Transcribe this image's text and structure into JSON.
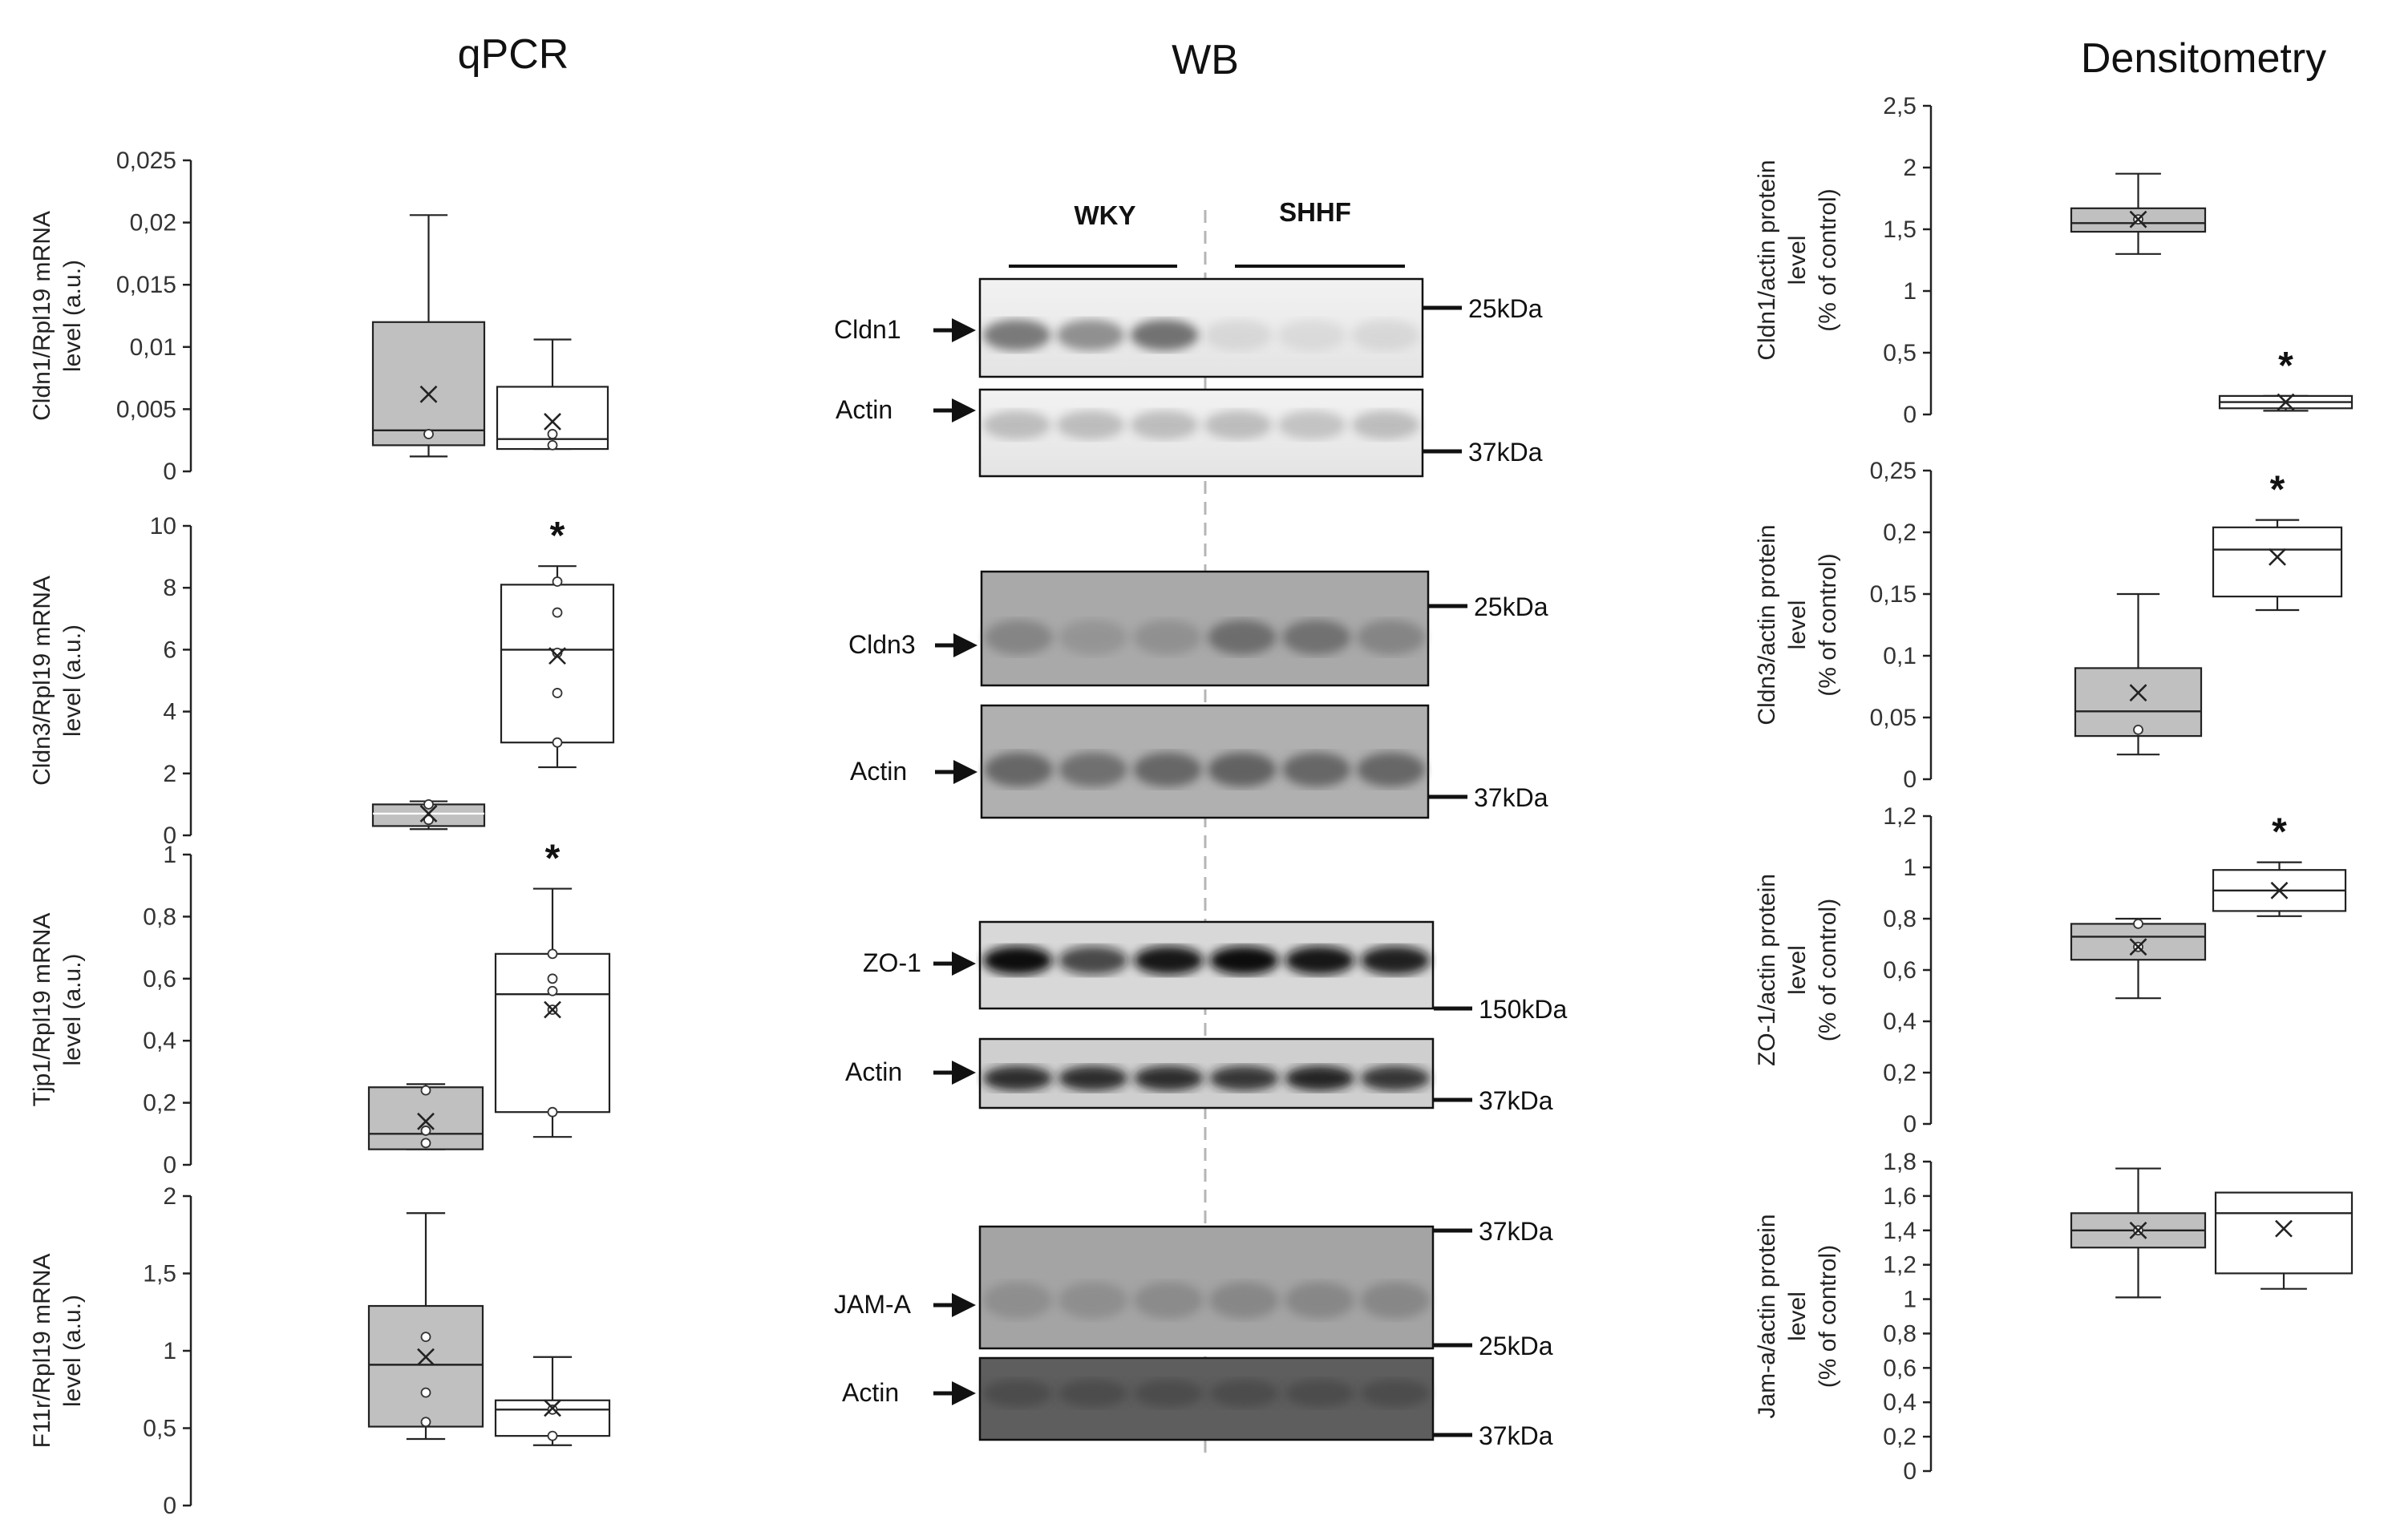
{
  "section_titles": {
    "qpcr": "qPCR",
    "wb": "WB",
    "densitometry": "Densitometry"
  },
  "wb": {
    "groups": [
      "WKY",
      "SHHF"
    ],
    "blots": [
      {
        "target": "Cldn1",
        "loading": "Actin",
        "markers": [
          "25kDa",
          "37kDa"
        ]
      },
      {
        "target": "Cldn3",
        "loading": "Actin",
        "markers": [
          "25kDa",
          "37kDa"
        ]
      },
      {
        "target": "ZO-1",
        "loading": "Actin",
        "markers": [
          "150kDa",
          "37kDa"
        ]
      },
      {
        "target": "JAM-A",
        "loading": "Actin",
        "markers": [
          "37kDa",
          "25kDa",
          "37kDa"
        ]
      }
    ]
  },
  "colors": {
    "wky_fill": "#c0c0c0",
    "shhf_fill": "#ffffff",
    "stroke": "#222222"
  },
  "chart_data": [
    {
      "type": "box",
      "id": "qpcr-cldn1",
      "ylabel": [
        "Cldn1/Rpl19  mRNA",
        "level (a.u.)"
      ],
      "ylim": [
        0,
        0.025
      ],
      "ticks": [
        "0",
        "0,005",
        "0,01",
        "0,015",
        "0,02",
        "0,025"
      ],
      "series": [
        {
          "min": 0.0012,
          "q1": 0.0021,
          "median": 0.0033,
          "q3": 0.012,
          "max": 0.0206,
          "mean": 0.0062,
          "points": [
            0.003
          ]
        },
        {
          "min": 0.0018,
          "q1": 0.0018,
          "median": 0.0026,
          "q3": 0.0068,
          "max": 0.0106,
          "mean": 0.004,
          "points": [
            0.0021,
            0.003
          ]
        }
      ],
      "significance": []
    },
    {
      "type": "box",
      "id": "qpcr-cldn3",
      "ylabel": [
        "Cldn3/Rpl19  mRNA",
        "level (a.u.)"
      ],
      "ylim": [
        0,
        10
      ],
      "ticks": [
        "0",
        "2",
        "4",
        "6",
        "8",
        "10"
      ],
      "series": [
        {
          "min": 0.2,
          "q1": 0.3,
          "median": 0.7,
          "q3": 1.0,
          "max": 1.1,
          "mean": 0.7,
          "points": [
            0.5,
            1.0
          ]
        },
        {
          "min": 2.2,
          "q1": 3.0,
          "median": 6.0,
          "q3": 8.1,
          "max": 8.7,
          "mean": 5.8,
          "points": [
            3.0,
            4.6,
            5.9,
            7.2,
            8.2
          ]
        }
      ],
      "significance": [
        "*"
      ]
    },
    {
      "type": "box",
      "id": "qpcr-tjp1",
      "ylabel": [
        "Tjp1/Rpl19  mRNA",
        "level (a.u.)"
      ],
      "ylim": [
        0,
        1
      ],
      "ticks": [
        "0",
        "0,2",
        "0,4",
        "0,6",
        "0,8",
        "1"
      ],
      "series": [
        {
          "min": 0.05,
          "q1": 0.05,
          "median": 0.1,
          "q3": 0.25,
          "max": 0.26,
          "mean": 0.14,
          "points": [
            0.07,
            0.11,
            0.24
          ]
        },
        {
          "min": 0.09,
          "q1": 0.17,
          "median": 0.55,
          "q3": 0.68,
          "max": 0.89,
          "mean": 0.5,
          "points": [
            0.17,
            0.5,
            0.56,
            0.6,
            0.68
          ]
        }
      ],
      "significance": [
        "*"
      ]
    },
    {
      "type": "box",
      "id": "qpcr-f11r",
      "ylabel": [
        "F11r/Rpl19  mRNA",
        "level (a.u.)"
      ],
      "ylim": [
        0,
        2
      ],
      "ticks": [
        "0",
        "0,5",
        "1",
        "1,5",
        "2"
      ],
      "series": [
        {
          "min": 0.43,
          "q1": 0.51,
          "median": 0.91,
          "q3": 1.29,
          "max": 1.89,
          "mean": 0.96,
          "points": [
            0.54,
            0.73,
            1.09
          ]
        },
        {
          "min": 0.39,
          "q1": 0.45,
          "median": 0.62,
          "q3": 0.68,
          "max": 0.96,
          "mean": 0.63,
          "points": [
            0.45,
            0.62
          ]
        }
      ],
      "significance": []
    },
    {
      "type": "box",
      "id": "dens-cldn1",
      "ylabel": [
        "Cldn1/actin protein",
        "level",
        "(% of control)"
      ],
      "ylim": [
        0,
        2.5
      ],
      "ticks": [
        "0",
        "0,5",
        "1",
        "1,5",
        "2",
        "2,5"
      ],
      "series": [
        {
          "min": 1.3,
          "q1": 1.48,
          "median": 1.55,
          "q3": 1.67,
          "max": 1.95,
          "mean": 1.58,
          "points": [
            1.58
          ]
        },
        {
          "min": 0.03,
          "q1": 0.05,
          "median": 0.1,
          "q3": 0.15,
          "max": 0.15,
          "mean": 0.1,
          "points": []
        }
      ],
      "significance": [
        "*"
      ]
    },
    {
      "type": "box",
      "id": "dens-cldn3",
      "ylabel": [
        "Cldn3/actin protein",
        "level",
        "(% of control)"
      ],
      "ylim": [
        0,
        0.25
      ],
      "ticks": [
        "0",
        "0,05",
        "0,1",
        "0,15",
        "0,2",
        "0,25"
      ],
      "series": [
        {
          "min": 0.02,
          "q1": 0.035,
          "median": 0.055,
          "q3": 0.09,
          "max": 0.15,
          "mean": 0.07,
          "points": [
            0.04
          ]
        },
        {
          "min": 0.137,
          "q1": 0.148,
          "median": 0.186,
          "q3": 0.204,
          "max": 0.21,
          "mean": 0.18,
          "points": []
        }
      ],
      "significance": [
        "*"
      ]
    },
    {
      "type": "box",
      "id": "dens-zo1",
      "ylabel": [
        "ZO-1/actin  protein",
        "level",
        "(% of control)"
      ],
      "ylim": [
        0,
        1.2
      ],
      "ticks": [
        "0",
        "0,2",
        "0,4",
        "0,6",
        "0,8",
        "1",
        "1,2"
      ],
      "series": [
        {
          "min": 0.49,
          "q1": 0.64,
          "median": 0.73,
          "q3": 0.78,
          "max": 0.8,
          "mean": 0.69,
          "points": [
            0.69,
            0.78
          ]
        },
        {
          "min": 0.81,
          "q1": 0.83,
          "median": 0.91,
          "q3": 0.99,
          "max": 1.02,
          "mean": 0.91,
          "points": []
        }
      ],
      "significance": [
        "*"
      ]
    },
    {
      "type": "box",
      "id": "dens-jama",
      "ylabel": [
        "Jam-a/actin protein",
        "level",
        "(% of control)"
      ],
      "ylim": [
        0,
        1.8
      ],
      "ticks": [
        "0",
        "0,2",
        "0,4",
        "0,6",
        "0,8",
        "1",
        "1,2",
        "1,4",
        "1,6",
        "1,8"
      ],
      "series": [
        {
          "min": 1.01,
          "q1": 1.3,
          "median": 1.4,
          "q3": 1.5,
          "max": 1.76,
          "mean": 1.4,
          "points": [
            1.4
          ]
        },
        {
          "min": 1.06,
          "q1": 1.15,
          "median": 1.5,
          "q3": 1.62,
          "max": 1.62,
          "mean": 1.41,
          "points": []
        }
      ],
      "significance": []
    }
  ]
}
